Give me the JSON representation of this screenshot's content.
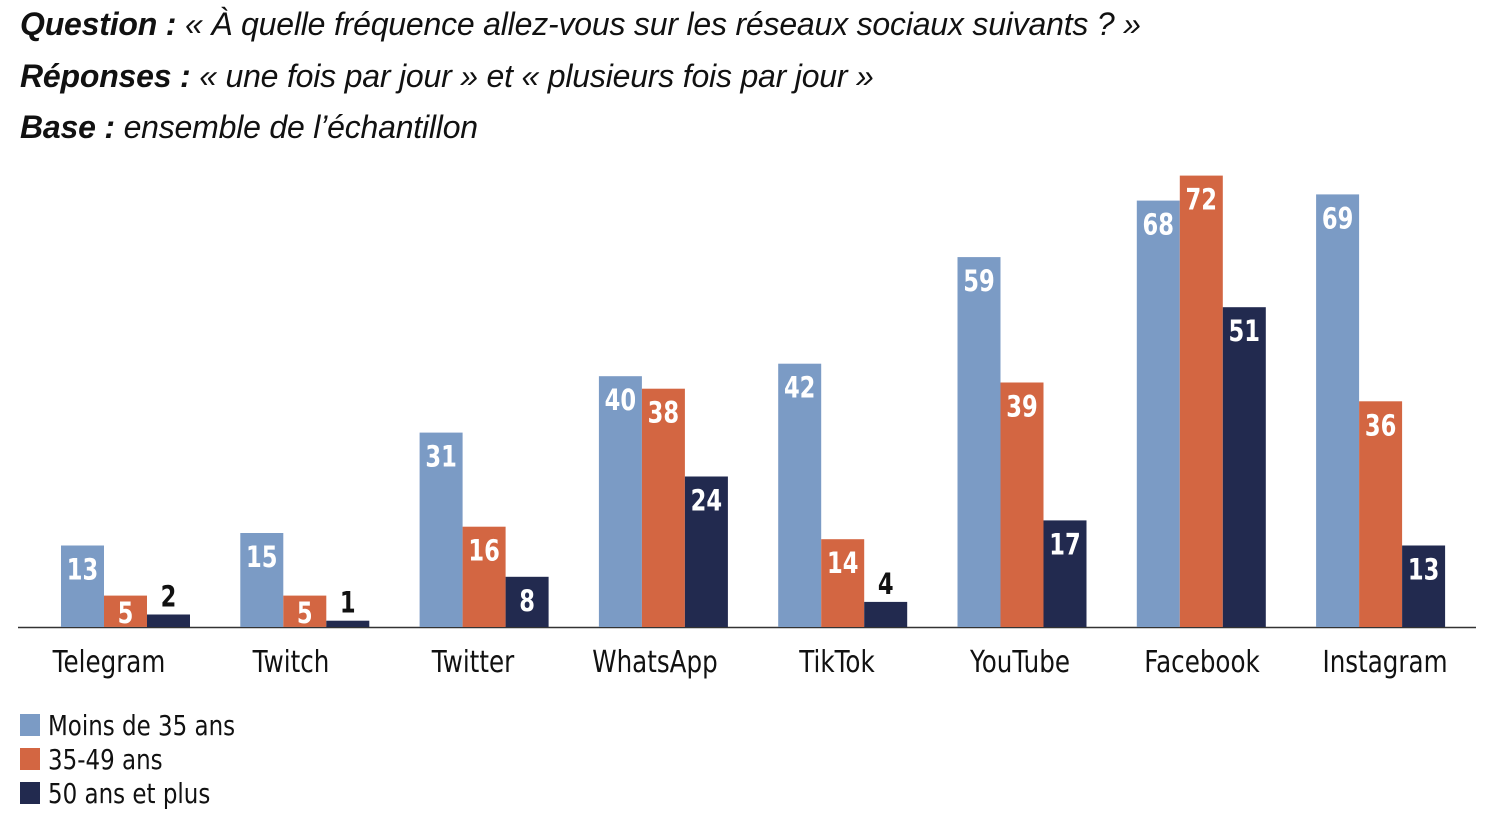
{
  "header": {
    "question_label": "Question :",
    "question_text": "« À quelle fréquence allez-vous sur les réseaux sociaux suivants ? »",
    "responses_label": "Réponses :",
    "responses_text": "« une fois par jour » et « plusieurs fois par jour »",
    "base_label": "Base :",
    "base_text": "ensemble de l’échantillon"
  },
  "chart_data": {
    "type": "bar",
    "title": "",
    "xlabel": "",
    "ylabel": "",
    "ylim": [
      0,
      72
    ],
    "grid": false,
    "legend_placement": "bottom-left",
    "categories": [
      "Telegram",
      "Twitch",
      "Twitter",
      "WhatsApp",
      "TikTok",
      "YouTube",
      "Facebook",
      "Instagram"
    ],
    "series": [
      {
        "name": "Moins de 35 ans",
        "color": "#7b9bc5",
        "label_color": "#ffffff",
        "values": [
          13,
          15,
          31,
          40,
          42,
          59,
          68,
          69
        ]
      },
      {
        "name": "35-49 ans",
        "color": "#d36642",
        "label_color": "#ffffff",
        "values": [
          5,
          5,
          16,
          38,
          14,
          39,
          72,
          36
        ]
      },
      {
        "name": "50 ans et plus",
        "color": "#222a4f",
        "label_color": "#ffffff",
        "values": [
          2,
          1,
          8,
          24,
          4,
          17,
          51,
          13
        ]
      }
    ]
  }
}
